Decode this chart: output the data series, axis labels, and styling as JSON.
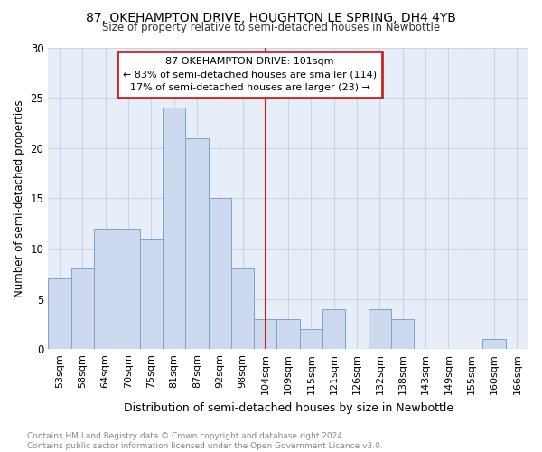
{
  "title": "87, OKEHAMPTON DRIVE, HOUGHTON LE SPRING, DH4 4YB",
  "subtitle": "Size of property relative to semi-detached houses in Newbottle",
  "xlabel": "Distribution of semi-detached houses by size in Newbottle",
  "ylabel": "Number of semi-detached properties",
  "categories": [
    "53sqm",
    "58sqm",
    "64sqm",
    "70sqm",
    "75sqm",
    "81sqm",
    "87sqm",
    "92sqm",
    "98sqm",
    "104sqm",
    "109sqm",
    "115sqm",
    "121sqm",
    "126sqm",
    "132sqm",
    "138sqm",
    "143sqm",
    "149sqm",
    "155sqm",
    "160sqm",
    "166sqm"
  ],
  "values": [
    7,
    8,
    12,
    12,
    11,
    24,
    21,
    15,
    8,
    3,
    3,
    2,
    4,
    0,
    4,
    3,
    0,
    0,
    0,
    1,
    0
  ],
  "bar_color": "#ccd9ee",
  "bar_edge_color": "#7ba3d0",
  "annotation_line1": "87 OKEHAMPTON DRIVE: 101sqm",
  "annotation_line2": "← 83% of semi-detached houses are smaller (114)",
  "annotation_line3": "17% of semi-detached houses are larger (23) →",
  "annotation_box_color": "#ffffff",
  "annotation_box_edge_color": "#cc2222",
  "vline_color": "#cc2222",
  "grid_color": "#c8d4e8",
  "background_color": "#e8eef8",
  "footer_text": "Contains HM Land Registry data © Crown copyright and database right 2024.\nContains public sector information licensed under the Open Government Licence v3.0.",
  "ylim": [
    0,
    30
  ],
  "yticks": [
    0,
    5,
    10,
    15,
    20,
    25,
    30
  ],
  "vline_x": 9.0,
  "figwidth": 6.0,
  "figheight": 5.0,
  "dpi": 100
}
